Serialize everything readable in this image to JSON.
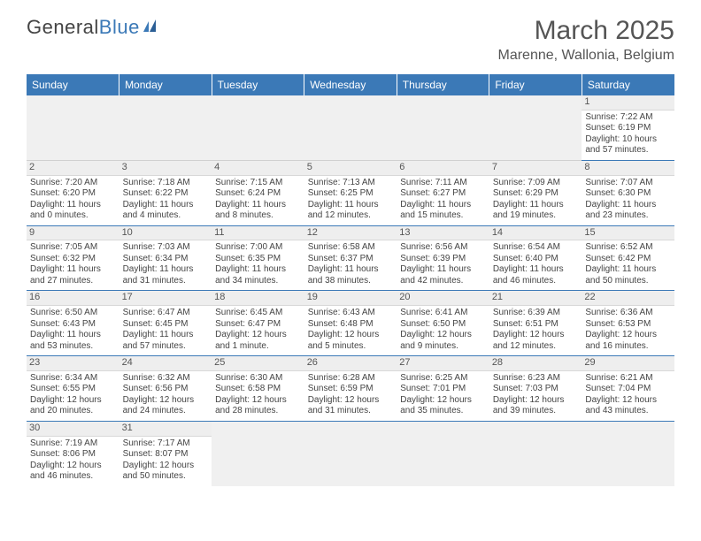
{
  "logo": {
    "text1": "General",
    "text2": "Blue"
  },
  "title": "March 2025",
  "location": "Marenne, Wallonia, Belgium",
  "headers": [
    "Sunday",
    "Monday",
    "Tuesday",
    "Wednesday",
    "Thursday",
    "Friday",
    "Saturday"
  ],
  "colors": {
    "header_bg": "#3b79b7",
    "header_text": "#ffffff",
    "row_divider": "#3b79b7",
    "daynum_bg": "#eeeeee",
    "empty_bg": "#f0f0f0",
    "body_text": "#444444"
  },
  "weeks": [
    [
      null,
      null,
      null,
      null,
      null,
      null,
      {
        "n": "1",
        "sr": "Sunrise: 7:22 AM",
        "ss": "Sunset: 6:19 PM",
        "dl": "Daylight: 10 hours and 57 minutes."
      }
    ],
    [
      {
        "n": "2",
        "sr": "Sunrise: 7:20 AM",
        "ss": "Sunset: 6:20 PM",
        "dl": "Daylight: 11 hours and 0 minutes."
      },
      {
        "n": "3",
        "sr": "Sunrise: 7:18 AM",
        "ss": "Sunset: 6:22 PM",
        "dl": "Daylight: 11 hours and 4 minutes."
      },
      {
        "n": "4",
        "sr": "Sunrise: 7:15 AM",
        "ss": "Sunset: 6:24 PM",
        "dl": "Daylight: 11 hours and 8 minutes."
      },
      {
        "n": "5",
        "sr": "Sunrise: 7:13 AM",
        "ss": "Sunset: 6:25 PM",
        "dl": "Daylight: 11 hours and 12 minutes."
      },
      {
        "n": "6",
        "sr": "Sunrise: 7:11 AM",
        "ss": "Sunset: 6:27 PM",
        "dl": "Daylight: 11 hours and 15 minutes."
      },
      {
        "n": "7",
        "sr": "Sunrise: 7:09 AM",
        "ss": "Sunset: 6:29 PM",
        "dl": "Daylight: 11 hours and 19 minutes."
      },
      {
        "n": "8",
        "sr": "Sunrise: 7:07 AM",
        "ss": "Sunset: 6:30 PM",
        "dl": "Daylight: 11 hours and 23 minutes."
      }
    ],
    [
      {
        "n": "9",
        "sr": "Sunrise: 7:05 AM",
        "ss": "Sunset: 6:32 PM",
        "dl": "Daylight: 11 hours and 27 minutes."
      },
      {
        "n": "10",
        "sr": "Sunrise: 7:03 AM",
        "ss": "Sunset: 6:34 PM",
        "dl": "Daylight: 11 hours and 31 minutes."
      },
      {
        "n": "11",
        "sr": "Sunrise: 7:00 AM",
        "ss": "Sunset: 6:35 PM",
        "dl": "Daylight: 11 hours and 34 minutes."
      },
      {
        "n": "12",
        "sr": "Sunrise: 6:58 AM",
        "ss": "Sunset: 6:37 PM",
        "dl": "Daylight: 11 hours and 38 minutes."
      },
      {
        "n": "13",
        "sr": "Sunrise: 6:56 AM",
        "ss": "Sunset: 6:39 PM",
        "dl": "Daylight: 11 hours and 42 minutes."
      },
      {
        "n": "14",
        "sr": "Sunrise: 6:54 AM",
        "ss": "Sunset: 6:40 PM",
        "dl": "Daylight: 11 hours and 46 minutes."
      },
      {
        "n": "15",
        "sr": "Sunrise: 6:52 AM",
        "ss": "Sunset: 6:42 PM",
        "dl": "Daylight: 11 hours and 50 minutes."
      }
    ],
    [
      {
        "n": "16",
        "sr": "Sunrise: 6:50 AM",
        "ss": "Sunset: 6:43 PM",
        "dl": "Daylight: 11 hours and 53 minutes."
      },
      {
        "n": "17",
        "sr": "Sunrise: 6:47 AM",
        "ss": "Sunset: 6:45 PM",
        "dl": "Daylight: 11 hours and 57 minutes."
      },
      {
        "n": "18",
        "sr": "Sunrise: 6:45 AM",
        "ss": "Sunset: 6:47 PM",
        "dl": "Daylight: 12 hours and 1 minute."
      },
      {
        "n": "19",
        "sr": "Sunrise: 6:43 AM",
        "ss": "Sunset: 6:48 PM",
        "dl": "Daylight: 12 hours and 5 minutes."
      },
      {
        "n": "20",
        "sr": "Sunrise: 6:41 AM",
        "ss": "Sunset: 6:50 PM",
        "dl": "Daylight: 12 hours and 9 minutes."
      },
      {
        "n": "21",
        "sr": "Sunrise: 6:39 AM",
        "ss": "Sunset: 6:51 PM",
        "dl": "Daylight: 12 hours and 12 minutes."
      },
      {
        "n": "22",
        "sr": "Sunrise: 6:36 AM",
        "ss": "Sunset: 6:53 PM",
        "dl": "Daylight: 12 hours and 16 minutes."
      }
    ],
    [
      {
        "n": "23",
        "sr": "Sunrise: 6:34 AM",
        "ss": "Sunset: 6:55 PM",
        "dl": "Daylight: 12 hours and 20 minutes."
      },
      {
        "n": "24",
        "sr": "Sunrise: 6:32 AM",
        "ss": "Sunset: 6:56 PM",
        "dl": "Daylight: 12 hours and 24 minutes."
      },
      {
        "n": "25",
        "sr": "Sunrise: 6:30 AM",
        "ss": "Sunset: 6:58 PM",
        "dl": "Daylight: 12 hours and 28 minutes."
      },
      {
        "n": "26",
        "sr": "Sunrise: 6:28 AM",
        "ss": "Sunset: 6:59 PM",
        "dl": "Daylight: 12 hours and 31 minutes."
      },
      {
        "n": "27",
        "sr": "Sunrise: 6:25 AM",
        "ss": "Sunset: 7:01 PM",
        "dl": "Daylight: 12 hours and 35 minutes."
      },
      {
        "n": "28",
        "sr": "Sunrise: 6:23 AM",
        "ss": "Sunset: 7:03 PM",
        "dl": "Daylight: 12 hours and 39 minutes."
      },
      {
        "n": "29",
        "sr": "Sunrise: 6:21 AM",
        "ss": "Sunset: 7:04 PM",
        "dl": "Daylight: 12 hours and 43 minutes."
      }
    ],
    [
      {
        "n": "30",
        "sr": "Sunrise: 7:19 AM",
        "ss": "Sunset: 8:06 PM",
        "dl": "Daylight: 12 hours and 46 minutes."
      },
      {
        "n": "31",
        "sr": "Sunrise: 7:17 AM",
        "ss": "Sunset: 8:07 PM",
        "dl": "Daylight: 12 hours and 50 minutes."
      },
      null,
      null,
      null,
      null,
      null
    ]
  ]
}
